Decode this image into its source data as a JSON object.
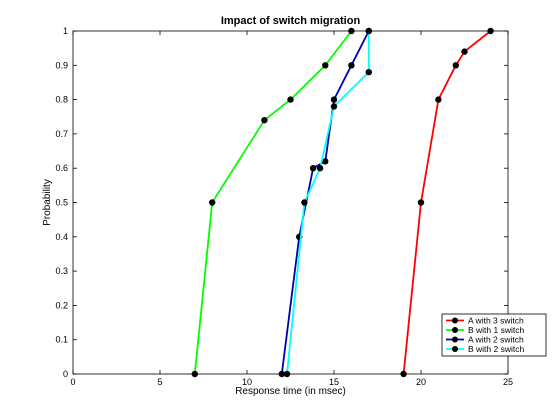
{
  "chart_data": {
    "type": "line",
    "title": "Impact of switch migration",
    "xlabel": "Response time (in msec)",
    "ylabel": "Probability",
    "xlim": [
      0,
      25
    ],
    "ylim": [
      0,
      1
    ],
    "xticks": [
      "0",
      "5",
      "10",
      "15",
      "20",
      "25"
    ],
    "yticks": [
      "0",
      "0.1",
      "0.2",
      "0.3",
      "0.4",
      "0.5",
      "0.6",
      "0.7",
      "0.8",
      "0.9",
      "1"
    ],
    "grid": false,
    "legend_position": "bottom-right",
    "series": [
      {
        "name": "A with 3 switch",
        "color": "#ff0000",
        "points": [
          [
            19,
            0
          ],
          [
            20,
            0.5
          ],
          [
            21,
            0.8
          ],
          [
            22,
            0.9
          ],
          [
            22.5,
            0.94
          ],
          [
            24,
            1.0
          ]
        ]
      },
      {
        "name": "B with 1 switch",
        "color": "#00ff00",
        "points": [
          [
            7,
            0
          ],
          [
            8,
            0.5
          ],
          [
            11,
            0.74
          ],
          [
            12.5,
            0.8
          ],
          [
            14.5,
            0.9
          ],
          [
            16,
            1.0
          ]
        ]
      },
      {
        "name": "A with 2 switch",
        "color": "#0000aa",
        "points": [
          [
            12,
            0
          ],
          [
            13,
            0.4
          ],
          [
            13.8,
            0.6
          ],
          [
            14.5,
            0.62
          ],
          [
            15,
            0.8
          ],
          [
            16,
            0.9
          ],
          [
            17,
            1.0
          ]
        ]
      },
      {
        "name": "B with 2 switch",
        "color": "#00ffff",
        "points": [
          [
            12.3,
            0
          ],
          [
            13.3,
            0.5
          ],
          [
            14.2,
            0.6
          ],
          [
            15,
            0.78
          ],
          [
            17,
            0.88
          ],
          [
            17,
            1.0
          ]
        ]
      }
    ]
  }
}
